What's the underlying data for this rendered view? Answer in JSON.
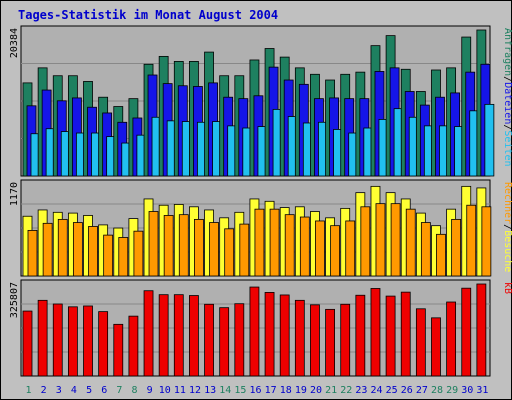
{
  "title": "Tages-Statistik im Monat August 2004",
  "colors": {
    "background": "#c0c0c0",
    "panel": "#b0b0b0",
    "anfragen": "#1e8060",
    "dateien": "#1515e8",
    "seiten": "#21c0f0",
    "besuche": "#ffff33",
    "rechner": "#ff9900",
    "kb": "#ee0000",
    "title": "#0000cc",
    "weekend_label": "#1e8060",
    "weekday_label": "#0000cc"
  },
  "chart_data": [
    {
      "type": "bar",
      "panel": "requests",
      "categories": [
        "1",
        "2",
        "3",
        "4",
        "5",
        "6",
        "7",
        "8",
        "9",
        "10",
        "11",
        "12",
        "13",
        "14",
        "15",
        "16",
        "17",
        "18",
        "19",
        "20",
        "21",
        "22",
        "23",
        "24",
        "25",
        "26",
        "27",
        "28",
        "29",
        "30",
        "31"
      ],
      "y_max_label": "20384",
      "legend": [
        "Anfragen",
        "/",
        "Dateien",
        "/",
        "Seiten"
      ],
      "ylim": [
        0,
        20384
      ],
      "series": [
        {
          "name": "Anfragen",
          "values": [
            13000,
            15100,
            14000,
            14000,
            13200,
            11000,
            9700,
            10800,
            15600,
            16700,
            16000,
            16000,
            17300,
            14000,
            14000,
            16200,
            17800,
            16600,
            15100,
            14200,
            13400,
            14200,
            14500,
            18200,
            19600,
            14900,
            11800,
            14800,
            15100,
            19400,
            20384
          ]
        },
        {
          "name": "Dateien",
          "values": [
            9800,
            12000,
            10500,
            10900,
            9600,
            8800,
            7500,
            8100,
            14100,
            12900,
            12600,
            12500,
            13000,
            11000,
            10800,
            11200,
            15200,
            13400,
            12800,
            10800,
            10900,
            10800,
            10800,
            14600,
            15100,
            11800,
            9900,
            11000,
            11600,
            14500,
            15600
          ]
        },
        {
          "name": "Seiten",
          "values": [
            5900,
            6600,
            6200,
            6000,
            6000,
            5500,
            4600,
            5700,
            8200,
            7700,
            7600,
            7500,
            7600,
            7000,
            6700,
            6900,
            9300,
            8300,
            7400,
            7500,
            6500,
            6000,
            6700,
            7900,
            9400,
            8200,
            7000,
            7000,
            6900,
            9100,
            10000
          ]
        }
      ]
    },
    {
      "type": "bar",
      "panel": "visits",
      "categories": [
        "1",
        "2",
        "3",
        "4",
        "5",
        "6",
        "7",
        "8",
        "9",
        "10",
        "11",
        "12",
        "13",
        "14",
        "15",
        "16",
        "17",
        "18",
        "19",
        "20",
        "21",
        "22",
        "23",
        "24",
        "25",
        "26",
        "27",
        "28",
        "29",
        "30",
        "31"
      ],
      "y_max_label": "1170",
      "legend": [
        "Rechner",
        "/",
        "Besuche"
      ],
      "ylim": [
        0,
        1170
      ],
      "series": [
        {
          "name": "Besuche",
          "values": [
            760,
            840,
            810,
            800,
            770,
            650,
            610,
            730,
            980,
            900,
            910,
            880,
            840,
            740,
            810,
            980,
            950,
            870,
            880,
            820,
            740,
            860,
            1060,
            1140,
            1060,
            980,
            800,
            640,
            850,
            1140,
            1120
          ]
        },
        {
          "name": "Rechner",
          "values": [
            580,
            670,
            720,
            680,
            630,
            520,
            490,
            570,
            820,
            770,
            780,
            720,
            680,
            600,
            660,
            850,
            850,
            780,
            750,
            700,
            640,
            700,
            880,
            920,
            920,
            850,
            680,
            530,
            720,
            900,
            880
          ]
        }
      ]
    },
    {
      "type": "bar",
      "panel": "kb",
      "categories": [
        "1",
        "2",
        "3",
        "4",
        "5",
        "6",
        "7",
        "8",
        "9",
        "10",
        "11",
        "12",
        "13",
        "14",
        "15",
        "16",
        "17",
        "18",
        "19",
        "20",
        "21",
        "22",
        "23",
        "24",
        "25",
        "26",
        "27",
        "28",
        "29",
        "30",
        "31"
      ],
      "y_max_label": "325807",
      "legend": [
        "kB"
      ],
      "ylim": [
        0,
        325807
      ],
      "series": [
        {
          "name": "kB",
          "values": [
            230000,
            268000,
            255000,
            245000,
            248000,
            228000,
            183000,
            212000,
            302000,
            288000,
            288000,
            285000,
            254000,
            242000,
            256000,
            315000,
            296000,
            287000,
            268000,
            252000,
            236000,
            254000,
            286000,
            310000,
            283000,
            297000,
            238000,
            206000,
            262000,
            311000,
            325807
          ]
        }
      ]
    }
  ],
  "x_labels": [
    "1",
    "2",
    "3",
    "4",
    "5",
    "6",
    "7",
    "8",
    "9",
    "10",
    "11",
    "12",
    "13",
    "14",
    "15",
    "16",
    "17",
    "18",
    "19",
    "20",
    "21",
    "22",
    "23",
    "24",
    "25",
    "26",
    "27",
    "28",
    "29",
    "30",
    "31"
  ],
  "weekend_days": [
    1,
    7,
    8,
    14,
    15,
    21,
    22,
    28,
    29
  ]
}
